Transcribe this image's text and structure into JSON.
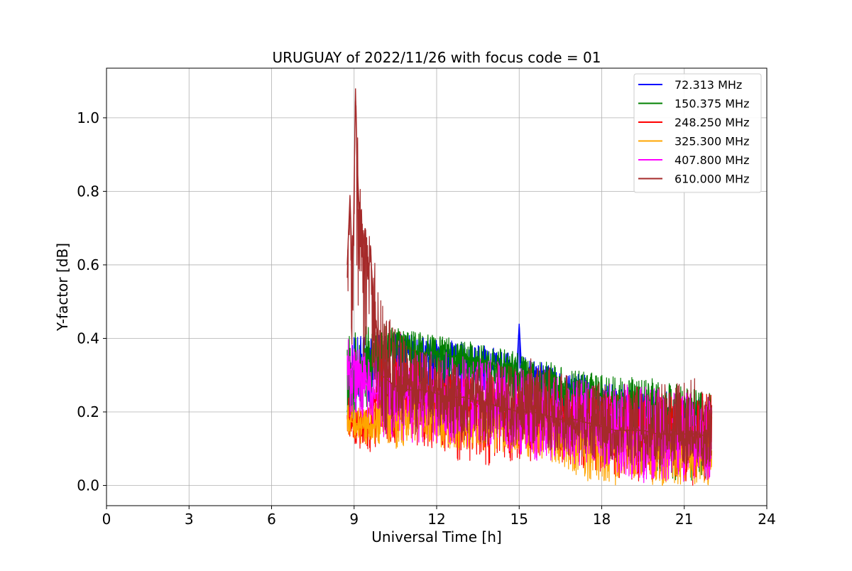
{
  "chart_data": {
    "type": "line",
    "title": "URUGUAY of 2022/11/26 with focus code = 01",
    "xlabel": "Universal Time [h]",
    "ylabel": "Y-factor [dB]",
    "xlim": [
      0,
      24
    ],
    "ylim": [
      -0.055,
      1.135
    ],
    "xticks": [
      0,
      3,
      6,
      9,
      12,
      15,
      18,
      21,
      24
    ],
    "xtick_labels": [
      "0",
      "3",
      "6",
      "9",
      "12",
      "15",
      "18",
      "21",
      "24"
    ],
    "yticks": [
      0.0,
      0.2,
      0.4,
      0.6,
      0.8,
      1.0
    ],
    "ytick_labels": [
      "0.0",
      "0.2",
      "0.4",
      "0.6",
      "0.8",
      "1.0"
    ],
    "grid": true,
    "legend_position": "top-right",
    "series": [
      {
        "name": " 72.313 MHz",
        "color": "#0000ff",
        "points": [
          [
            8.75,
            0.2
          ],
          [
            9.0,
            0.3
          ],
          [
            9.5,
            0.34
          ],
          [
            10,
            0.36
          ],
          [
            10.5,
            0.37
          ],
          [
            11,
            0.36
          ],
          [
            11.5,
            0.36
          ],
          [
            12,
            0.35
          ],
          [
            12.5,
            0.35
          ],
          [
            13,
            0.35
          ],
          [
            13.5,
            0.33
          ],
          [
            14,
            0.33
          ],
          [
            14.5,
            0.31
          ],
          [
            14.9,
            0.3
          ],
          [
            15.0,
            0.44
          ],
          [
            15.1,
            0.3
          ],
          [
            15.5,
            0.29
          ],
          [
            16,
            0.28
          ],
          [
            16.5,
            0.26
          ],
          [
            17,
            0.25
          ],
          [
            17.5,
            0.24
          ],
          [
            18,
            0.23
          ],
          [
            18.5,
            0.22
          ],
          [
            19,
            0.22
          ],
          [
            19.5,
            0.21
          ],
          [
            20,
            0.2
          ],
          [
            20.5,
            0.19
          ],
          [
            21,
            0.2
          ],
          [
            21.5,
            0.19
          ],
          [
            22,
            0.18
          ]
        ],
        "envelope": [
          [
            8.75,
            0.16,
            0.4
          ],
          [
            10,
            0.25,
            0.42
          ],
          [
            12,
            0.24,
            0.4
          ],
          [
            14,
            0.22,
            0.38
          ],
          [
            16,
            0.17,
            0.33
          ],
          [
            18,
            0.14,
            0.29
          ],
          [
            20,
            0.1,
            0.26
          ],
          [
            22,
            0.08,
            0.24
          ]
        ]
      },
      {
        "name": "150.375 MHz",
        "color": "#008000",
        "points": [
          [
            8.75,
            0.2
          ],
          [
            9.0,
            0.3
          ],
          [
            9.5,
            0.34
          ],
          [
            10,
            0.37
          ],
          [
            10.5,
            0.38
          ],
          [
            11,
            0.37
          ],
          [
            11.5,
            0.36
          ],
          [
            12,
            0.36
          ],
          [
            12.5,
            0.35
          ],
          [
            13,
            0.35
          ],
          [
            13.5,
            0.34
          ],
          [
            14,
            0.33
          ],
          [
            14.5,
            0.31
          ],
          [
            15,
            0.3
          ],
          [
            15.5,
            0.29
          ],
          [
            16,
            0.28
          ],
          [
            16.5,
            0.27
          ],
          [
            17,
            0.26
          ],
          [
            17.5,
            0.25
          ],
          [
            18,
            0.24
          ],
          [
            18.5,
            0.23
          ],
          [
            19,
            0.22
          ],
          [
            19.5,
            0.22
          ],
          [
            20,
            0.21
          ],
          [
            20.5,
            0.2
          ],
          [
            21,
            0.2
          ],
          [
            21.5,
            0.19
          ],
          [
            22,
            0.18
          ]
        ],
        "envelope": [
          [
            8.75,
            0.16,
            0.43
          ],
          [
            10,
            0.24,
            0.44
          ],
          [
            12,
            0.23,
            0.41
          ],
          [
            14,
            0.21,
            0.38
          ],
          [
            16,
            0.16,
            0.34
          ],
          [
            18,
            0.12,
            0.3
          ],
          [
            20,
            0.0,
            0.29
          ],
          [
            22,
            0.02,
            0.25
          ]
        ]
      },
      {
        "name": "248.250 MHz",
        "color": "#ff0000",
        "points": [
          [
            8.75,
            0.17
          ],
          [
            9.0,
            0.16
          ],
          [
            9.5,
            0.15
          ],
          [
            10,
            0.26
          ],
          [
            10.5,
            0.27
          ],
          [
            11,
            0.26
          ],
          [
            11.5,
            0.25
          ],
          [
            12,
            0.25
          ],
          [
            12.5,
            0.24
          ],
          [
            13,
            0.24
          ],
          [
            13.5,
            0.23
          ],
          [
            14,
            0.22
          ],
          [
            14.5,
            0.21
          ],
          [
            15,
            0.2
          ],
          [
            15.5,
            0.2
          ],
          [
            16,
            0.19
          ],
          [
            16.5,
            0.19
          ],
          [
            17,
            0.18
          ],
          [
            17.5,
            0.17
          ],
          [
            18,
            0.16
          ],
          [
            18.5,
            0.16
          ],
          [
            19,
            0.15
          ],
          [
            19.5,
            0.14
          ],
          [
            20,
            0.13
          ],
          [
            20.5,
            0.13
          ],
          [
            21,
            0.13
          ],
          [
            21.5,
            0.12
          ],
          [
            22,
            0.12
          ]
        ],
        "envelope": [
          [
            8.75,
            0.13,
            0.25
          ],
          [
            9.5,
            0.08,
            0.22
          ],
          [
            10,
            0.12,
            0.36
          ],
          [
            12,
            0.1,
            0.33
          ],
          [
            13.7,
            0.03,
            0.3
          ],
          [
            16,
            0.07,
            0.27
          ],
          [
            18,
            0.03,
            0.25
          ],
          [
            20,
            0.0,
            0.25
          ],
          [
            22,
            0.0,
            0.25
          ]
        ]
      },
      {
        "name": "325.300 MHz",
        "color": "#ffa500",
        "points": [
          [
            8.75,
            0.18
          ],
          [
            9.0,
            0.17
          ],
          [
            9.5,
            0.16
          ],
          [
            10,
            0.18
          ],
          [
            10.5,
            0.19
          ],
          [
            11,
            0.19
          ],
          [
            11.5,
            0.18
          ],
          [
            12,
            0.18
          ],
          [
            12.5,
            0.17
          ],
          [
            13,
            0.17
          ],
          [
            13.5,
            0.16
          ],
          [
            14,
            0.16
          ],
          [
            14.5,
            0.15
          ],
          [
            15,
            0.15
          ],
          [
            15.5,
            0.14
          ],
          [
            16,
            0.14
          ],
          [
            16.5,
            0.13
          ],
          [
            17,
            0.13
          ],
          [
            17.5,
            0.12
          ],
          [
            18,
            0.11
          ],
          [
            18.5,
            0.11
          ],
          [
            19,
            0.1
          ],
          [
            19.5,
            0.1
          ],
          [
            20,
            0.09
          ],
          [
            20.5,
            0.09
          ],
          [
            21,
            0.09
          ],
          [
            21.5,
            0.08
          ],
          [
            22,
            0.08
          ]
        ],
        "envelope": [
          [
            8.75,
            0.14,
            0.23
          ],
          [
            9.5,
            0.1,
            0.21
          ],
          [
            10,
            0.1,
            0.25
          ],
          [
            12,
            0.1,
            0.24
          ],
          [
            14,
            0.09,
            0.22
          ],
          [
            16,
            0.07,
            0.2
          ],
          [
            17.5,
            0.01,
            0.18
          ],
          [
            18,
            0.0,
            0.17
          ],
          [
            20,
            0.0,
            0.15
          ],
          [
            22,
            0.0,
            0.14
          ]
        ]
      },
      {
        "name": "407.800 MHz",
        "color": "#ff00ff",
        "points": [
          [
            8.75,
            0.3
          ],
          [
            9.0,
            0.33
          ],
          [
            9.3,
            0.3
          ],
          [
            9.6,
            0.25
          ],
          [
            10,
            0.25
          ],
          [
            10.5,
            0.26
          ],
          [
            11,
            0.26
          ],
          [
            11.5,
            0.25
          ],
          [
            12,
            0.24
          ],
          [
            12.5,
            0.24
          ],
          [
            13,
            0.23
          ],
          [
            13.5,
            0.22
          ],
          [
            14,
            0.21
          ],
          [
            14.5,
            0.2
          ],
          [
            15,
            0.19
          ],
          [
            15.5,
            0.19
          ],
          [
            16,
            0.18
          ],
          [
            16.5,
            0.17
          ],
          [
            17,
            0.17
          ],
          [
            17.5,
            0.16
          ],
          [
            18,
            0.15
          ],
          [
            18.5,
            0.14
          ],
          [
            19,
            0.14
          ],
          [
            19.5,
            0.13
          ],
          [
            20,
            0.12
          ],
          [
            20.5,
            0.12
          ],
          [
            21,
            0.12
          ],
          [
            21.5,
            0.11
          ],
          [
            22,
            0.1
          ]
        ],
        "envelope": [
          [
            8.75,
            0.17,
            0.4
          ],
          [
            9.0,
            0.2,
            0.4
          ],
          [
            9.5,
            0.17,
            0.35
          ],
          [
            10,
            0.12,
            0.36
          ],
          [
            12,
            0.11,
            0.37
          ],
          [
            14,
            0.1,
            0.34
          ],
          [
            16,
            0.06,
            0.31
          ],
          [
            18,
            0.05,
            0.28
          ],
          [
            19.5,
            0.0,
            0.27
          ],
          [
            21,
            0.01,
            0.26
          ],
          [
            22,
            0.01,
            0.25
          ]
        ]
      },
      {
        "name": "610.000 MHz",
        "color": "#a52a2a",
        "points": [
          [
            8.75,
            0.6
          ],
          [
            8.85,
            0.79
          ],
          [
            8.95,
            0.55
          ],
          [
            9.05,
            1.08
          ],
          [
            9.1,
            0.9
          ],
          [
            9.2,
            0.72
          ],
          [
            9.3,
            0.62
          ],
          [
            9.4,
            0.7
          ],
          [
            9.5,
            0.56
          ],
          [
            9.6,
            0.64
          ],
          [
            9.7,
            0.5
          ],
          [
            9.8,
            0.44
          ],
          [
            9.9,
            0.38
          ],
          [
            10,
            0.3
          ],
          [
            10.5,
            0.27
          ],
          [
            11,
            0.26
          ],
          [
            11.5,
            0.26
          ],
          [
            12,
            0.25
          ],
          [
            12.5,
            0.24
          ],
          [
            13,
            0.24
          ],
          [
            13.5,
            0.23
          ],
          [
            14,
            0.22
          ],
          [
            14.5,
            0.21
          ],
          [
            15,
            0.2
          ],
          [
            15.5,
            0.2
          ],
          [
            16,
            0.19
          ],
          [
            16.5,
            0.18
          ],
          [
            17,
            0.18
          ],
          [
            17.5,
            0.17
          ],
          [
            18,
            0.16
          ],
          [
            18.5,
            0.15
          ],
          [
            19,
            0.15
          ],
          [
            19.5,
            0.15
          ],
          [
            20,
            0.14
          ],
          [
            20.5,
            0.14
          ],
          [
            21,
            0.14
          ],
          [
            21.5,
            0.14
          ],
          [
            22,
            0.13
          ]
        ],
        "envelope": [
          [
            8.75,
            0.35,
            0.63
          ],
          [
            9.0,
            0.4,
            0.79
          ],
          [
            9.05,
            0.5,
            1.08
          ],
          [
            9.3,
            0.35,
            0.73
          ],
          [
            9.7,
            0.3,
            0.65
          ],
          [
            10,
            0.14,
            0.5
          ],
          [
            11,
            0.14,
            0.38
          ],
          [
            12,
            0.13,
            0.35
          ],
          [
            14,
            0.11,
            0.33
          ],
          [
            15.5,
            0.1,
            0.36
          ],
          [
            16,
            0.09,
            0.33
          ],
          [
            18,
            0.06,
            0.28
          ],
          [
            20,
            0.04,
            0.27
          ],
          [
            21,
            0.05,
            0.3
          ],
          [
            22,
            0.04,
            0.28
          ]
        ]
      }
    ]
  }
}
